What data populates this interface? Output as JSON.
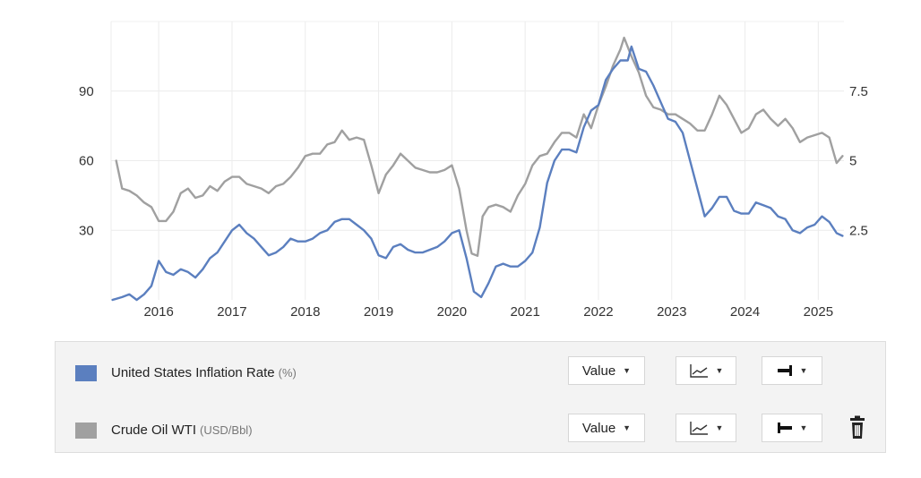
{
  "chart_data": {
    "type": "line",
    "x_ticks": [
      "2016",
      "2017",
      "2018",
      "2019",
      "2020",
      "2021",
      "2022",
      "2023",
      "2024",
      "2025"
    ],
    "x_range": [
      2015.35,
      2025.35
    ],
    "left_axis": {
      "ticks": [
        "30",
        "60",
        "90"
      ],
      "range": [
        0,
        120
      ]
    },
    "right_axis": {
      "ticks": [
        "2.5",
        "5",
        "7.5"
      ],
      "range": [
        0,
        10
      ]
    },
    "grid": true,
    "series": [
      {
        "name": "Crude Oil WTI",
        "unit": "(USD/Bbl)",
        "axis": "left",
        "color": "#a0a0a0",
        "points": [
          [
            2015.42,
            60
          ],
          [
            2015.5,
            48
          ],
          [
            2015.6,
            47
          ],
          [
            2015.7,
            45
          ],
          [
            2015.8,
            42
          ],
          [
            2015.9,
            40
          ],
          [
            2016.0,
            34
          ],
          [
            2016.1,
            34
          ],
          [
            2016.2,
            38
          ],
          [
            2016.3,
            46
          ],
          [
            2016.4,
            48
          ],
          [
            2016.5,
            44
          ],
          [
            2016.6,
            45
          ],
          [
            2016.7,
            49
          ],
          [
            2016.8,
            47
          ],
          [
            2016.9,
            51
          ],
          [
            2017.0,
            53
          ],
          [
            2017.1,
            53
          ],
          [
            2017.2,
            50
          ],
          [
            2017.3,
            49
          ],
          [
            2017.4,
            48
          ],
          [
            2017.5,
            46
          ],
          [
            2017.6,
            49
          ],
          [
            2017.7,
            50
          ],
          [
            2017.8,
            53
          ],
          [
            2017.9,
            57
          ],
          [
            2018.0,
            62
          ],
          [
            2018.1,
            63
          ],
          [
            2018.2,
            63
          ],
          [
            2018.3,
            67
          ],
          [
            2018.4,
            68
          ],
          [
            2018.5,
            73
          ],
          [
            2018.6,
            69
          ],
          [
            2018.7,
            70
          ],
          [
            2018.8,
            69
          ],
          [
            2018.9,
            58
          ],
          [
            2019.0,
            46
          ],
          [
            2019.1,
            54
          ],
          [
            2019.2,
            58
          ],
          [
            2019.3,
            63
          ],
          [
            2019.4,
            60
          ],
          [
            2019.5,
            57
          ],
          [
            2019.6,
            56
          ],
          [
            2019.7,
            55
          ],
          [
            2019.8,
            55
          ],
          [
            2019.9,
            56
          ],
          [
            2020.0,
            58
          ],
          [
            2020.1,
            48
          ],
          [
            2020.2,
            30
          ],
          [
            2020.27,
            20
          ],
          [
            2020.35,
            19
          ],
          [
            2020.42,
            36
          ],
          [
            2020.5,
            40
          ],
          [
            2020.6,
            41
          ],
          [
            2020.7,
            40
          ],
          [
            2020.8,
            38
          ],
          [
            2020.9,
            45
          ],
          [
            2021.0,
            50
          ],
          [
            2021.1,
            58
          ],
          [
            2021.2,
            62
          ],
          [
            2021.3,
            63
          ],
          [
            2021.4,
            68
          ],
          [
            2021.5,
            72
          ],
          [
            2021.6,
            72
          ],
          [
            2021.7,
            70
          ],
          [
            2021.8,
            80
          ],
          [
            2021.9,
            74
          ],
          [
            2022.0,
            84
          ],
          [
            2022.1,
            92
          ],
          [
            2022.2,
            101
          ],
          [
            2022.3,
            108
          ],
          [
            2022.35,
            113
          ],
          [
            2022.45,
            105
          ],
          [
            2022.55,
            98
          ],
          [
            2022.65,
            88
          ],
          [
            2022.75,
            83
          ],
          [
            2022.85,
            82
          ],
          [
            2022.95,
            80
          ],
          [
            2023.05,
            80
          ],
          [
            2023.15,
            78
          ],
          [
            2023.25,
            76
          ],
          [
            2023.35,
            73
          ],
          [
            2023.45,
            73
          ],
          [
            2023.55,
            80
          ],
          [
            2023.65,
            88
          ],
          [
            2023.75,
            84
          ],
          [
            2023.85,
            78
          ],
          [
            2023.95,
            72
          ],
          [
            2024.05,
            74
          ],
          [
            2024.15,
            80
          ],
          [
            2024.25,
            82
          ],
          [
            2024.35,
            78
          ],
          [
            2024.45,
            75
          ],
          [
            2024.55,
            78
          ],
          [
            2024.65,
            74
          ],
          [
            2024.75,
            68
          ],
          [
            2024.85,
            70
          ],
          [
            2024.95,
            71
          ],
          [
            2025.05,
            72
          ],
          [
            2025.15,
            70
          ],
          [
            2025.25,
            59
          ],
          [
            2025.33,
            62
          ]
        ]
      },
      {
        "name": "United States Inflation Rate",
        "unit": "(%)",
        "axis": "right",
        "color": "#5b7fbf",
        "points": [
          [
            2015.37,
            0.0
          ],
          [
            2015.5,
            0.1
          ],
          [
            2015.6,
            0.2
          ],
          [
            2015.7,
            0.0
          ],
          [
            2015.8,
            0.2
          ],
          [
            2015.9,
            0.5
          ],
          [
            2016.0,
            1.4
          ],
          [
            2016.1,
            1.0
          ],
          [
            2016.2,
            0.9
          ],
          [
            2016.3,
            1.1
          ],
          [
            2016.4,
            1.0
          ],
          [
            2016.5,
            0.8
          ],
          [
            2016.6,
            1.1
          ],
          [
            2016.7,
            1.5
          ],
          [
            2016.8,
            1.7
          ],
          [
            2016.9,
            2.1
          ],
          [
            2017.0,
            2.5
          ],
          [
            2017.1,
            2.7
          ],
          [
            2017.2,
            2.4
          ],
          [
            2017.3,
            2.2
          ],
          [
            2017.4,
            1.9
          ],
          [
            2017.5,
            1.6
          ],
          [
            2017.6,
            1.7
          ],
          [
            2017.7,
            1.9
          ],
          [
            2017.8,
            2.2
          ],
          [
            2017.9,
            2.1
          ],
          [
            2018.0,
            2.1
          ],
          [
            2018.1,
            2.2
          ],
          [
            2018.2,
            2.4
          ],
          [
            2018.3,
            2.5
          ],
          [
            2018.4,
            2.8
          ],
          [
            2018.5,
            2.9
          ],
          [
            2018.6,
            2.9
          ],
          [
            2018.7,
            2.7
          ],
          [
            2018.8,
            2.5
          ],
          [
            2018.9,
            2.2
          ],
          [
            2019.0,
            1.6
          ],
          [
            2019.1,
            1.5
          ],
          [
            2019.2,
            1.9
          ],
          [
            2019.3,
            2.0
          ],
          [
            2019.4,
            1.8
          ],
          [
            2019.5,
            1.7
          ],
          [
            2019.6,
            1.7
          ],
          [
            2019.7,
            1.8
          ],
          [
            2019.8,
            1.9
          ],
          [
            2019.9,
            2.1
          ],
          [
            2020.0,
            2.4
          ],
          [
            2020.1,
            2.5
          ],
          [
            2020.2,
            1.5
          ],
          [
            2020.3,
            0.3
          ],
          [
            2020.4,
            0.1
          ],
          [
            2020.5,
            0.6
          ],
          [
            2020.6,
            1.2
          ],
          [
            2020.7,
            1.3
          ],
          [
            2020.8,
            1.2
          ],
          [
            2020.9,
            1.2
          ],
          [
            2021.0,
            1.4
          ],
          [
            2021.1,
            1.7
          ],
          [
            2021.2,
            2.6
          ],
          [
            2021.3,
            4.2
          ],
          [
            2021.4,
            5.0
          ],
          [
            2021.5,
            5.4
          ],
          [
            2021.6,
            5.4
          ],
          [
            2021.7,
            5.3
          ],
          [
            2021.8,
            6.2
          ],
          [
            2021.9,
            6.8
          ],
          [
            2022.0,
            7.0
          ],
          [
            2022.1,
            7.9
          ],
          [
            2022.2,
            8.3
          ],
          [
            2022.3,
            8.6
          ],
          [
            2022.4,
            8.6
          ],
          [
            2022.45,
            9.1
          ],
          [
            2022.55,
            8.3
          ],
          [
            2022.65,
            8.2
          ],
          [
            2022.75,
            7.7
          ],
          [
            2022.85,
            7.1
          ],
          [
            2022.95,
            6.5
          ],
          [
            2023.05,
            6.4
          ],
          [
            2023.15,
            6.0
          ],
          [
            2023.25,
            5.0
          ],
          [
            2023.35,
            4.0
          ],
          [
            2023.45,
            3.0
          ],
          [
            2023.55,
            3.3
          ],
          [
            2023.65,
            3.7
          ],
          [
            2023.75,
            3.7
          ],
          [
            2023.85,
            3.2
          ],
          [
            2023.95,
            3.1
          ],
          [
            2024.05,
            3.1
          ],
          [
            2024.15,
            3.5
          ],
          [
            2024.25,
            3.4
          ],
          [
            2024.35,
            3.3
          ],
          [
            2024.45,
            3.0
          ],
          [
            2024.55,
            2.9
          ],
          [
            2024.65,
            2.5
          ],
          [
            2024.75,
            2.4
          ],
          [
            2024.85,
            2.6
          ],
          [
            2024.95,
            2.7
          ],
          [
            2025.05,
            3.0
          ],
          [
            2025.15,
            2.8
          ],
          [
            2025.25,
            2.4
          ],
          [
            2025.33,
            2.3
          ]
        ]
      }
    ]
  },
  "legend": {
    "rows": [
      {
        "name": "United States Inflation Rate",
        "unit": "(%)",
        "color": "#5b7fbf",
        "value_label": "Value",
        "chart_icon": "line-chart-icon",
        "axis_icon": "axis-right-icon",
        "has_delete": false
      },
      {
        "name": "Crude Oil WTI",
        "unit": "(USD/Bbl)",
        "color": "#a0a0a0",
        "value_label": "Value",
        "chart_icon": "line-chart-icon",
        "axis_icon": "axis-left-icon",
        "has_delete": true,
        "delete_icon": "trash-icon"
      }
    ]
  }
}
